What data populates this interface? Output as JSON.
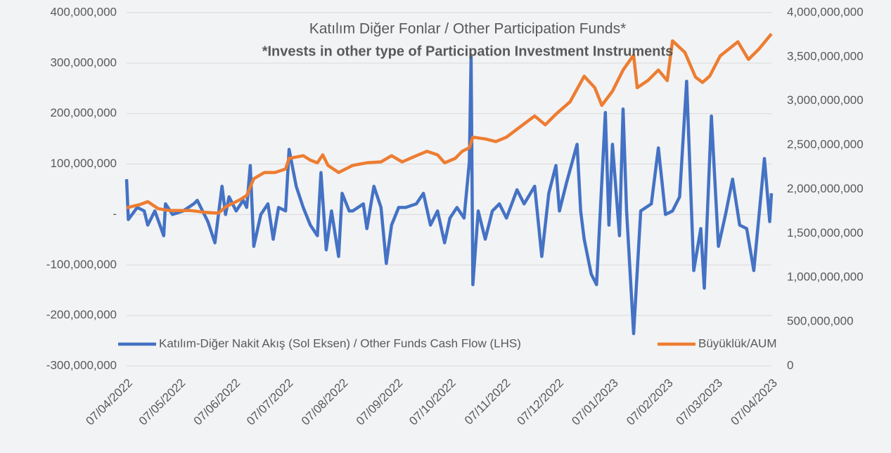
{
  "chart_data": {
    "type": "line",
    "title": "Katılım Diğer Fonlar / Other Participation Funds*",
    "subtitle": "*Invests in other type of Participation Investment Instruments",
    "xlim": [
      "07/04/2022",
      "07/04/2023"
    ],
    "xticks": [
      "07/04/2022",
      "07/05/2022",
      "07/06/2022",
      "07/07/2022",
      "07/08/2022",
      "07/09/2022",
      "07/10/2022",
      "07/11/2022",
      "07/12/2022",
      "07/01/2023",
      "07/02/2023",
      "07/03/2023",
      "07/04/2023"
    ],
    "ylim": [
      -300000000,
      400000000
    ],
    "yticks": [
      {
        "value": -300000000,
        "label": "-300,000,000"
      },
      {
        "value": -200000000,
        "label": "-200,000,000"
      },
      {
        "value": -100000000,
        "label": "-100,000,000"
      },
      {
        "value": 0,
        "label": "-"
      },
      {
        "value": 100000000,
        "label": "100,000,000"
      },
      {
        "value": 200000000,
        "label": "200,000,000"
      },
      {
        "value": 300000000,
        "label": "300,000,000"
      },
      {
        "value": 400000000,
        "label": "400,000,000"
      }
    ],
    "y2lim": [
      0,
      4000000000
    ],
    "y2ticks": [
      0,
      {
        "value": 500000000,
        "label": "500,000,000"
      },
      {
        "value": 1000000000,
        "label": "1,000,000,000"
      },
      {
        "value": 1500000000,
        "label": "1,500,000,000"
      },
      {
        "value": 2000000000,
        "label": "2,000,000,000"
      },
      {
        "value": 2500000000,
        "label": "2,500,000,000"
      },
      {
        "value": 3000000000,
        "label": "3,000,000,000"
      },
      {
        "value": 3500000000,
        "label": "3,500,000,000"
      },
      {
        "value": 4000000000,
        "label": "4,000,000,000"
      }
    ],
    "grid": true,
    "legend": "bottom",
    "series": [
      {
        "name": "Katılım-Diğer Nakit Akış (Sol Eksen) / Other Funds Cash Flow (LHS)",
        "color": "#4472c4",
        "axis": "y",
        "x": [
          "07/04/2022",
          "08/04/2022",
          "13/04/2022",
          "17/04/2022",
          "19/04/2022",
          "23/04/2022",
          "28/04/2022",
          "29/04/2022",
          "03/05/2022",
          "09/05/2022",
          "15/05/2022",
          "17/05/2022",
          "23/05/2022",
          "27/05/2022",
          "31/05/2022",
          "02/06/2022",
          "04/06/2022",
          "08/06/2022",
          "12/06/2022",
          "14/06/2022",
          "16/06/2022",
          "18/06/2022",
          "22/06/2022",
          "26/06/2022",
          "29/06/2022",
          "02/07/2022",
          "06/07/2022",
          "08/07/2022",
          "12/07/2022",
          "16/07/2022",
          "20/07/2022",
          "24/07/2022",
          "26/07/2022",
          "29/07/2022",
          "01/08/2022",
          "05/08/2022",
          "07/08/2022",
          "11/08/2022",
          "13/08/2022",
          "19/08/2022",
          "21/08/2022",
          "25/08/2022",
          "29/08/2022",
          "01/09/2022",
          "04/09/2022",
          "08/09/2022",
          "12/09/2022",
          "18/09/2022",
          "22/09/2022",
          "26/09/2022",
          "30/09/2022",
          "04/10/2022",
          "07/10/2022",
          "11/10/2022",
          "15/10/2022",
          "18/10/2022",
          "19/10/2022",
          "20/10/2022",
          "23/10/2022",
          "27/10/2022",
          "31/10/2022",
          "04/11/2022",
          "08/11/2022",
          "14/11/2022",
          "18/11/2022",
          "24/11/2022",
          "28/11/2022",
          "02/12/2022",
          "06/12/2022",
          "08/12/2022",
          "12/12/2022",
          "18/12/2022",
          "20/12/2022",
          "22/12/2022",
          "26/12/2022",
          "29/12/2022",
          "03/01/2023",
          "05/01/2023",
          "07/01/2023",
          "11/01/2023",
          "13/01/2023",
          "15/01/2023",
          "19/01/2023",
          "23/01/2023",
          "29/01/2023",
          "02/02/2023",
          "06/02/2023",
          "10/02/2023",
          "14/02/2023",
          "18/02/2023",
          "22/02/2023",
          "26/02/2023",
          "28/02/2023",
          "04/03/2023",
          "08/03/2023",
          "12/03/2023",
          "16/03/2023",
          "20/03/2023",
          "24/03/2023",
          "28/03/2023",
          "03/04/2023",
          "06/04/2023",
          "07/04/2023"
        ],
        "values": [
          70000000,
          -10000000,
          14000000,
          7000000,
          -21000000,
          7000000,
          -42000000,
          21000000,
          0,
          7000000,
          21000000,
          28000000,
          -14000000,
          -56000000,
          56000000,
          0,
          35000000,
          7000000,
          28000000,
          14000000,
          97000000,
          -63000000,
          0,
          21000000,
          -49000000,
          14000000,
          7000000,
          129000000,
          56000000,
          14000000,
          -21000000,
          -42000000,
          83000000,
          -70000000,
          7000000,
          -83000000,
          42000000,
          7000000,
          7000000,
          21000000,
          -28000000,
          56000000,
          14000000,
          -97000000,
          -21000000,
          14000000,
          14000000,
          21000000,
          42000000,
          -21000000,
          7000000,
          -56000000,
          -7000000,
          14000000,
          -7000000,
          104000000,
          313000000,
          -139000000,
          7000000,
          -49000000,
          7000000,
          21000000,
          -7000000,
          49000000,
          21000000,
          56000000,
          -83000000,
          42000000,
          97000000,
          7000000,
          63000000,
          139000000,
          7000000,
          -49000000,
          -118000000,
          -139000000,
          202000000,
          -21000000,
          139000000,
          -42000000,
          209000000,
          7000000,
          -236000000,
          7000000,
          21000000,
          132000000,
          0,
          7000000,
          35000000,
          264000000,
          -111000000,
          -28000000,
          -146000000,
          195000000,
          -63000000,
          0,
          70000000,
          -21000000,
          -28000000,
          -111000000,
          111000000,
          -14000000,
          42000000
        ]
      },
      {
        "name": "Büyüklük/AUM",
        "color": "#ed7d31",
        "axis": "y2",
        "x": [
          "07/04/2022",
          "15/04/2022",
          "19/04/2022",
          "25/04/2022",
          "01/05/2022",
          "13/05/2022",
          "21/05/2022",
          "29/05/2022",
          "02/06/2022",
          "10/06/2022",
          "14/06/2022",
          "18/06/2022",
          "24/06/2022",
          "30/06/2022",
          "06/07/2022",
          "08/07/2022",
          "16/07/2022",
          "20/07/2022",
          "24/07/2022",
          "27/07/2022",
          "30/07/2022",
          "05/08/2022",
          "13/08/2022",
          "21/08/2022",
          "29/08/2022",
          "04/09/2022",
          "10/09/2022",
          "18/09/2022",
          "24/09/2022",
          "30/09/2022",
          "04/10/2022",
          "10/10/2022",
          "14/10/2022",
          "18/10/2022",
          "20/10/2022",
          "27/10/2022",
          "02/11/2022",
          "08/11/2022",
          "16/11/2022",
          "24/11/2022",
          "30/11/2022",
          "06/12/2022",
          "14/12/2022",
          "22/12/2022",
          "28/12/2022",
          "01/01/2023",
          "07/01/2023",
          "13/01/2023",
          "19/01/2023",
          "21/01/2023",
          "27/01/2023",
          "02/02/2023",
          "07/02/2023",
          "10/02/2023",
          "17/02/2023",
          "23/02/2023",
          "27/02/2023",
          "03/03/2023",
          "09/03/2023",
          "19/03/2023",
          "25/03/2023",
          "31/03/2023",
          "07/04/2023"
        ],
        "values": [
          1790000000,
          1830000000,
          1860000000,
          1780000000,
          1760000000,
          1760000000,
          1740000000,
          1730000000,
          1800000000,
          1880000000,
          1930000000,
          2120000000,
          2190000000,
          2190000000,
          2230000000,
          2350000000,
          2380000000,
          2330000000,
          2300000000,
          2390000000,
          2270000000,
          2190000000,
          2270000000,
          2300000000,
          2310000000,
          2380000000,
          2310000000,
          2380000000,
          2430000000,
          2390000000,
          2300000000,
          2350000000,
          2430000000,
          2470000000,
          2590000000,
          2570000000,
          2540000000,
          2590000000,
          2710000000,
          2830000000,
          2730000000,
          2850000000,
          2990000000,
          3280000000,
          3150000000,
          2950000000,
          3110000000,
          3350000000,
          3520000000,
          3150000000,
          3230000000,
          3350000000,
          3230000000,
          3680000000,
          3550000000,
          3270000000,
          3210000000,
          3280000000,
          3510000000,
          3670000000,
          3470000000,
          3590000000,
          3760000000
        ]
      }
    ]
  }
}
